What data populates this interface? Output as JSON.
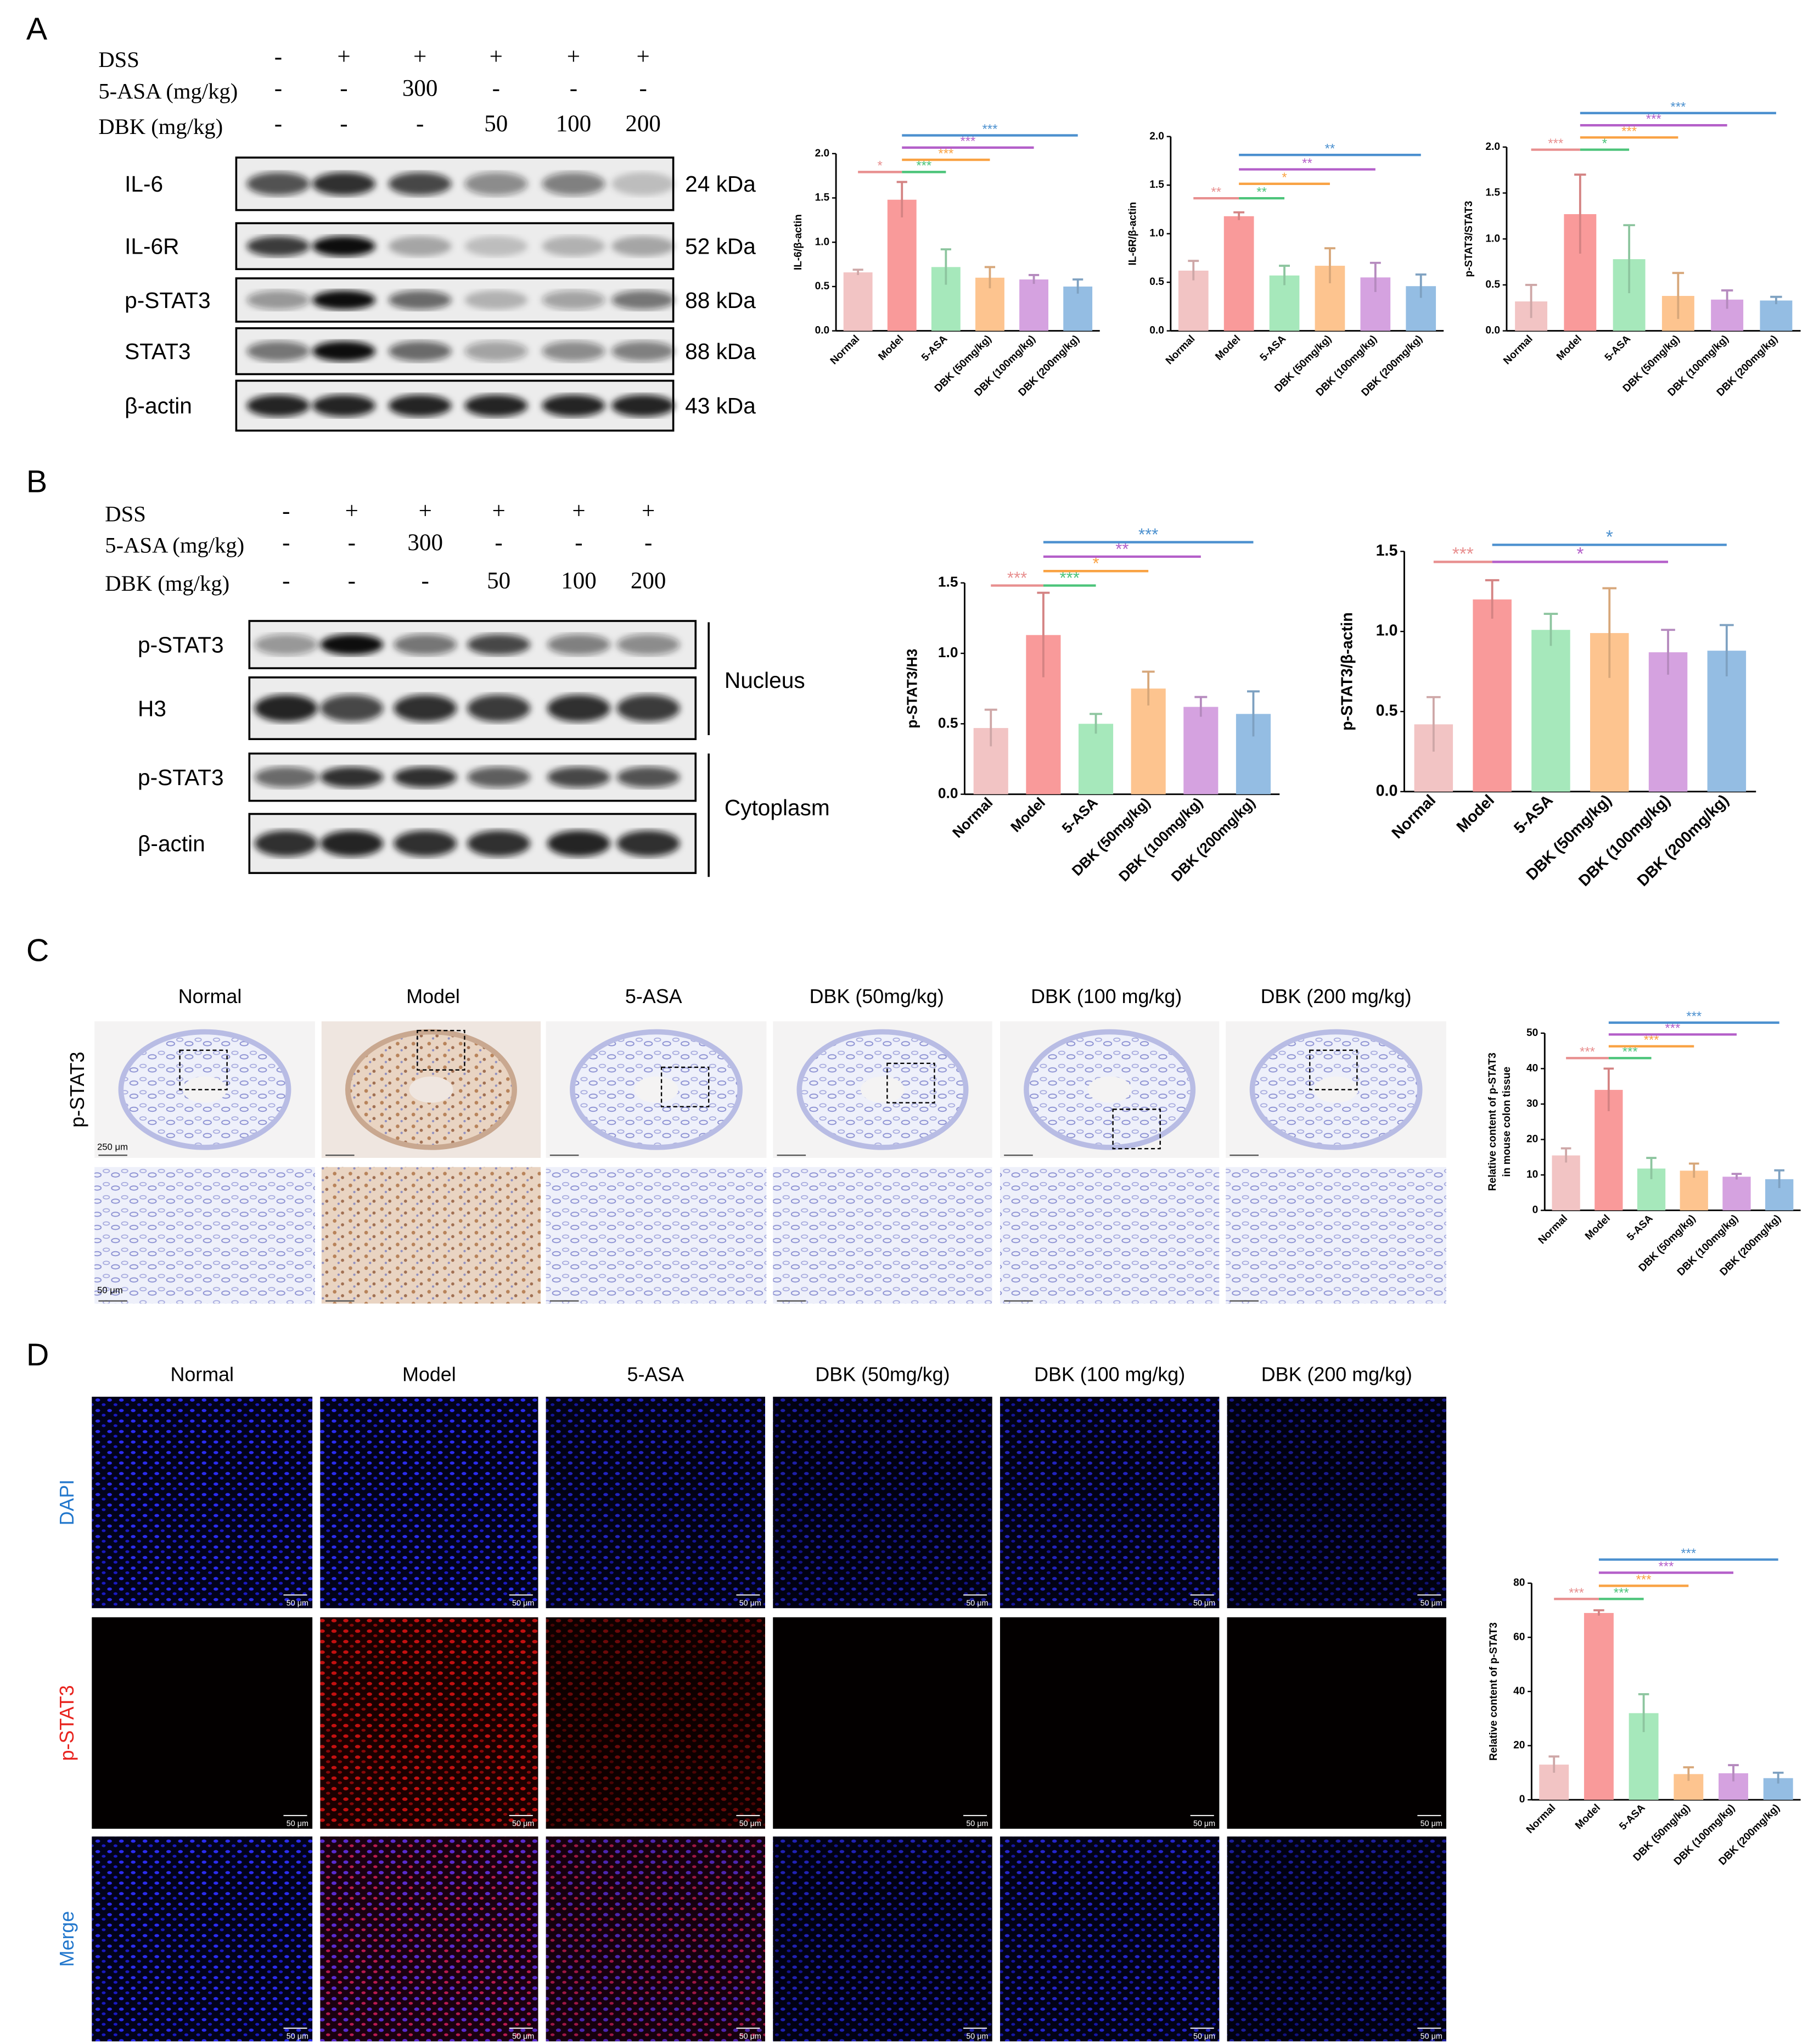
{
  "chart_data": [
    {
      "type": "bar",
      "y_label": [
        "IL-6/β-actin"
      ],
      "categories": [
        "Normal",
        "Model",
        "5-ASA",
        "DBK (50mg/kg)",
        "DBK (100mg/kg)",
        "DBK (200mg/kg)"
      ],
      "values": [
        0.66,
        1.48,
        0.72,
        0.6,
        0.58,
        0.5
      ],
      "errors": [
        0.03,
        0.2,
        0.2,
        0.12,
        0.05,
        0.08
      ],
      "colors": [
        "#f2c4c4",
        "#f99a9a",
        "#a6e8bb",
        "#fdc48f",
        "#d5a2e0",
        "#94bde3"
      ],
      "ylim": [
        0,
        2
      ],
      "yticks": [
        {
          "value": 0,
          "label": "0.0"
        },
        0.5,
        {
          "value": 1,
          "label": "1.0"
        },
        1.5,
        {
          "value": 2,
          "label": "2.0"
        }
      ],
      "significance": [
        {
          "label": "*",
          "pair": [
            "Normal",
            "Model"
          ],
          "color": "#e88f8f"
        },
        {
          "label": "***",
          "pair": [
            "Model",
            "5-ASA"
          ],
          "color": "#4cc47a"
        },
        {
          "label": "***",
          "pair": [
            "Model",
            "DBK (50mg/kg)"
          ],
          "color": "#f9a243"
        },
        {
          "label": "***",
          "pair": [
            "Model",
            "DBK (100mg/kg)"
          ],
          "color": "#b45fc9"
        },
        {
          "label": "***",
          "pair": [
            "Model",
            "DBK (200mg/kg)"
          ],
          "color": "#4b90cf"
        }
      ]
    },
    {
      "type": "bar",
      "y_label": [
        "IL-6R/β-actin"
      ],
      "categories": [
        "Normal",
        "Model",
        "5-ASA",
        "DBK (50mg/kg)",
        "DBK (100mg/kg)",
        "DBK (200mg/kg)"
      ],
      "values": [
        0.62,
        1.18,
        0.57,
        0.67,
        0.55,
        0.46
      ],
      "errors": [
        0.1,
        0.04,
        0.1,
        0.18,
        0.15,
        0.12
      ],
      "colors": [
        "#f2c4c4",
        "#f99a9a",
        "#a6e8bb",
        "#fdc48f",
        "#d5a2e0",
        "#94bde3"
      ],
      "ylim": [
        0,
        2
      ],
      "yticks": [
        {
          "value": 0,
          "label": "0.0"
        },
        0.5,
        {
          "value": 1,
          "label": "1.0"
        },
        1.5,
        {
          "value": 2,
          "label": "2.0"
        }
      ],
      "significance": [
        {
          "label": "**",
          "pair": [
            "Normal",
            "Model"
          ],
          "color": "#e88f8f"
        },
        {
          "label": "**",
          "pair": [
            "Model",
            "5-ASA"
          ],
          "color": "#4cc47a"
        },
        {
          "label": "*",
          "pair": [
            "Model",
            "DBK (50mg/kg)"
          ],
          "color": "#f9a243"
        },
        {
          "label": "**",
          "pair": [
            "Model",
            "DBK (100mg/kg)"
          ],
          "color": "#b45fc9"
        },
        {
          "label": "**",
          "pair": [
            "Model",
            "DBK (200mg/kg)"
          ],
          "color": "#4b90cf"
        }
      ]
    },
    {
      "type": "bar",
      "y_label": [
        "p-STAT3/STAT3"
      ],
      "categories": [
        "Normal",
        "Model",
        "5-ASA",
        "DBK (50mg/kg)",
        "DBK (100mg/kg)",
        "DBK (200mg/kg)"
      ],
      "values": [
        0.32,
        1.27,
        0.78,
        0.38,
        0.34,
        0.33
      ],
      "errors": [
        0.18,
        0.43,
        0.37,
        0.25,
        0.1,
        0.04
      ],
      "colors": [
        "#f2c4c4",
        "#f99a9a",
        "#a6e8bb",
        "#fdc48f",
        "#d5a2e0",
        "#94bde3"
      ],
      "ylim": [
        0,
        2
      ],
      "yticks": [
        {
          "value": 0,
          "label": "0.0"
        },
        0.5,
        {
          "value": 1,
          "label": "1.0"
        },
        1.5,
        {
          "value": 2,
          "label": "2.0"
        }
      ],
      "significance": [
        {
          "label": "***",
          "pair": [
            "Normal",
            "Model"
          ],
          "color": "#e88f8f"
        },
        {
          "label": "*",
          "pair": [
            "Model",
            "5-ASA"
          ],
          "color": "#4cc47a"
        },
        {
          "label": "***",
          "pair": [
            "Model",
            "DBK (50mg/kg)"
          ],
          "color": "#f9a243"
        },
        {
          "label": "***",
          "pair": [
            "Model",
            "DBK (100mg/kg)"
          ],
          "color": "#b45fc9"
        },
        {
          "label": "***",
          "pair": [
            "Model",
            "DBK (200mg/kg)"
          ],
          "color": "#4b90cf"
        }
      ]
    },
    {
      "type": "bar",
      "y_label": [
        "p-STAT3/H3"
      ],
      "categories": [
        "Normal",
        "Model",
        "5-ASA",
        "DBK (50mg/kg)",
        "DBK (100mg/kg)",
        "DBK (200mg/kg)"
      ],
      "values": [
        0.47,
        1.13,
        0.5,
        0.75,
        0.62,
        0.57
      ],
      "errors": [
        0.13,
        0.3,
        0.07,
        0.12,
        0.07,
        0.16
      ],
      "colors": [
        "#f2c4c4",
        "#f99a9a",
        "#a6e8bb",
        "#fdc48f",
        "#d5a2e0",
        "#94bde3"
      ],
      "ylim": [
        0,
        1.5
      ],
      "yticks": [
        {
          "value": 0,
          "label": "0.0"
        },
        0.5,
        {
          "value": 1,
          "label": "1.0"
        },
        1.5
      ],
      "significance": [
        {
          "label": "***",
          "pair": [
            "Normal",
            "Model"
          ],
          "color": "#e88f8f"
        },
        {
          "label": "***",
          "pair": [
            "Model",
            "5-ASA"
          ],
          "color": "#4cc47a"
        },
        {
          "label": "*",
          "pair": [
            "Model",
            "DBK (50mg/kg)"
          ],
          "color": "#f9a243"
        },
        {
          "label": "**",
          "pair": [
            "Model",
            "DBK (100mg/kg)"
          ],
          "color": "#b45fc9"
        },
        {
          "label": "***",
          "pair": [
            "Model",
            "DBK (200mg/kg)"
          ],
          "color": "#4b90cf"
        }
      ]
    },
    {
      "type": "bar",
      "y_label": [
        "p-STAT3/β-actin"
      ],
      "categories": [
        "Normal",
        "Model",
        "5-ASA",
        "DBK (50mg/kg)",
        "DBK (100mg/kg)",
        "DBK (200mg/kg)"
      ],
      "values": [
        0.42,
        1.2,
        1.01,
        0.99,
        0.87,
        0.88
      ],
      "errors": [
        0.17,
        0.12,
        0.1,
        0.28,
        0.14,
        0.16
      ],
      "colors": [
        "#f2c4c4",
        "#f99a9a",
        "#a6e8bb",
        "#fdc48f",
        "#d5a2e0",
        "#94bde3"
      ],
      "ylim": [
        0,
        1.5
      ],
      "yticks": [
        {
          "value": 0,
          "label": "0.0"
        },
        0.5,
        {
          "value": 1,
          "label": "1.0"
        },
        1.5
      ],
      "significance": [
        {
          "label": "***",
          "pair": [
            "Normal",
            "Model"
          ],
          "color": "#e88f8f"
        },
        {
          "label": "*",
          "pair": [
            "Model",
            "DBK (100mg/kg)"
          ],
          "color": "#b45fc9"
        },
        {
          "label": "*",
          "pair": [
            "Model",
            "DBK (200mg/kg)"
          ],
          "color": "#4b90cf"
        }
      ]
    },
    {
      "type": "bar",
      "y_label": [
        "Relative content of p-STAT3",
        "in mouse colon tissue"
      ],
      "categories": [
        "Normal",
        "Model",
        "5-ASA",
        "DBK (50mg/kg)",
        "DBK (100mg/kg)",
        "DBK (200mg/kg)"
      ],
      "values": [
        15.5,
        34,
        11.8,
        11.2,
        9.5,
        8.8
      ],
      "errors": [
        2,
        6,
        3,
        2,
        0.8,
        2.5
      ],
      "colors": [
        "#f2c4c4",
        "#f99a9a",
        "#a6e8bb",
        "#fdc48f",
        "#d5a2e0",
        "#94bde3"
      ],
      "ylim": [
        0,
        50
      ],
      "yticks": [
        0,
        10,
        20,
        30,
        40,
        50
      ],
      "significance": [
        {
          "label": "***",
          "pair": [
            "Normal",
            "Model"
          ],
          "color": "#e88f8f"
        },
        {
          "label": "***",
          "pair": [
            "Model",
            "5-ASA"
          ],
          "color": "#4cc47a"
        },
        {
          "label": "***",
          "pair": [
            "Model",
            "DBK (50mg/kg)"
          ],
          "color": "#f9a243"
        },
        {
          "label": "***",
          "pair": [
            "Model",
            "DBK (100mg/kg)"
          ],
          "color": "#b45fc9"
        },
        {
          "label": "***",
          "pair": [
            "Model",
            "DBK (200mg/kg)"
          ],
          "color": "#4b90cf"
        }
      ]
    },
    {
      "type": "bar",
      "y_label": [
        "Relative content of p-STAT3"
      ],
      "categories": [
        "Normal",
        "Model",
        "5-ASA",
        "DBK (50mg/kg)",
        "DBK (100mg/kg)",
        "DBK (200mg/kg)"
      ],
      "values": [
        13,
        69,
        32,
        9.5,
        9.8,
        8
      ],
      "errors": [
        3,
        1,
        7,
        2.5,
        3,
        2
      ],
      "colors": [
        "#f2c4c4",
        "#f99a9a",
        "#a6e8bb",
        "#fdc48f",
        "#d5a2e0",
        "#94bde3"
      ],
      "ylim": [
        0,
        80
      ],
      "yticks": [
        0,
        20,
        40,
        60,
        80
      ],
      "significance": [
        {
          "label": "***",
          "pair": [
            "Normal",
            "Model"
          ],
          "color": "#e88f8f"
        },
        {
          "label": "***",
          "pair": [
            "Model",
            "5-ASA"
          ],
          "color": "#4cc47a"
        },
        {
          "label": "***",
          "pair": [
            "Model",
            "DBK (50mg/kg)"
          ],
          "color": "#f9a243"
        },
        {
          "label": "***",
          "pair": [
            "Model",
            "DBK (100mg/kg)"
          ],
          "color": "#b45fc9"
        },
        {
          "label": "***",
          "pair": [
            "Model",
            "DBK (200mg/kg)"
          ],
          "color": "#4b90cf"
        }
      ]
    }
  ],
  "figure": {
    "panel_labels": [
      "A",
      "B",
      "C",
      "D"
    ],
    "blot_a": {
      "treatments": [
        {
          "name": "DSS",
          "levels": [
            "-",
            "+",
            "+",
            "+",
            "+",
            "+"
          ]
        },
        {
          "name": "5-ASA (mg/kg)",
          "levels": [
            "-",
            "-",
            "300",
            "-",
            "-",
            "-"
          ]
        },
        {
          "name": "DBK (mg/kg)",
          "levels": [
            "-",
            "-",
            "-",
            "50",
            "100",
            "200"
          ]
        }
      ],
      "bands": [
        {
          "name": "IL-6",
          "size": "24 kDa"
        },
        {
          "name": "IL-6R",
          "size": "52 kDa"
        },
        {
          "name": "p-STAT3",
          "size": "88 kDa"
        },
        {
          "name": "STAT3",
          "size": "88 kDa"
        },
        {
          "name": "β-actin",
          "size": "43 kDa"
        }
      ]
    },
    "blot_b": {
      "treatments": [
        {
          "name": "DSS",
          "levels": [
            "-",
            "+",
            "+",
            "+",
            "+",
            "+"
          ]
        },
        {
          "name": "5-ASA (mg/kg)",
          "levels": [
            "-",
            "-",
            "300",
            "-",
            "-",
            "-"
          ]
        },
        {
          "name": "DBK (mg/kg)",
          "levels": [
            "-",
            "-",
            "-",
            "50",
            "100",
            "200"
          ]
        }
      ],
      "bands": [
        "p-STAT3",
        "H3",
        "p-STAT3",
        "β-actin"
      ],
      "fractions": [
        "Nucleus",
        "Cytoplasm"
      ]
    },
    "ihc": {
      "columns": [
        "Normal",
        "Model",
        "5-ASA",
        "DBK (50mg/kg)",
        "DBK (100 mg/kg)",
        "DBK (200 mg/kg)"
      ],
      "row_label": "p-STAT3",
      "scale_labels": [
        "250 μm",
        "50 μm"
      ]
    },
    "if": {
      "columns": [
        "Normal",
        "Model",
        "5-ASA",
        "DBK (50mg/kg)",
        "DBK (100 mg/kg)",
        "DBK (200 mg/kg)"
      ],
      "rows": [
        "DAPI",
        "p-STAT3",
        "Merge"
      ],
      "scale_label": "50 μm"
    }
  }
}
